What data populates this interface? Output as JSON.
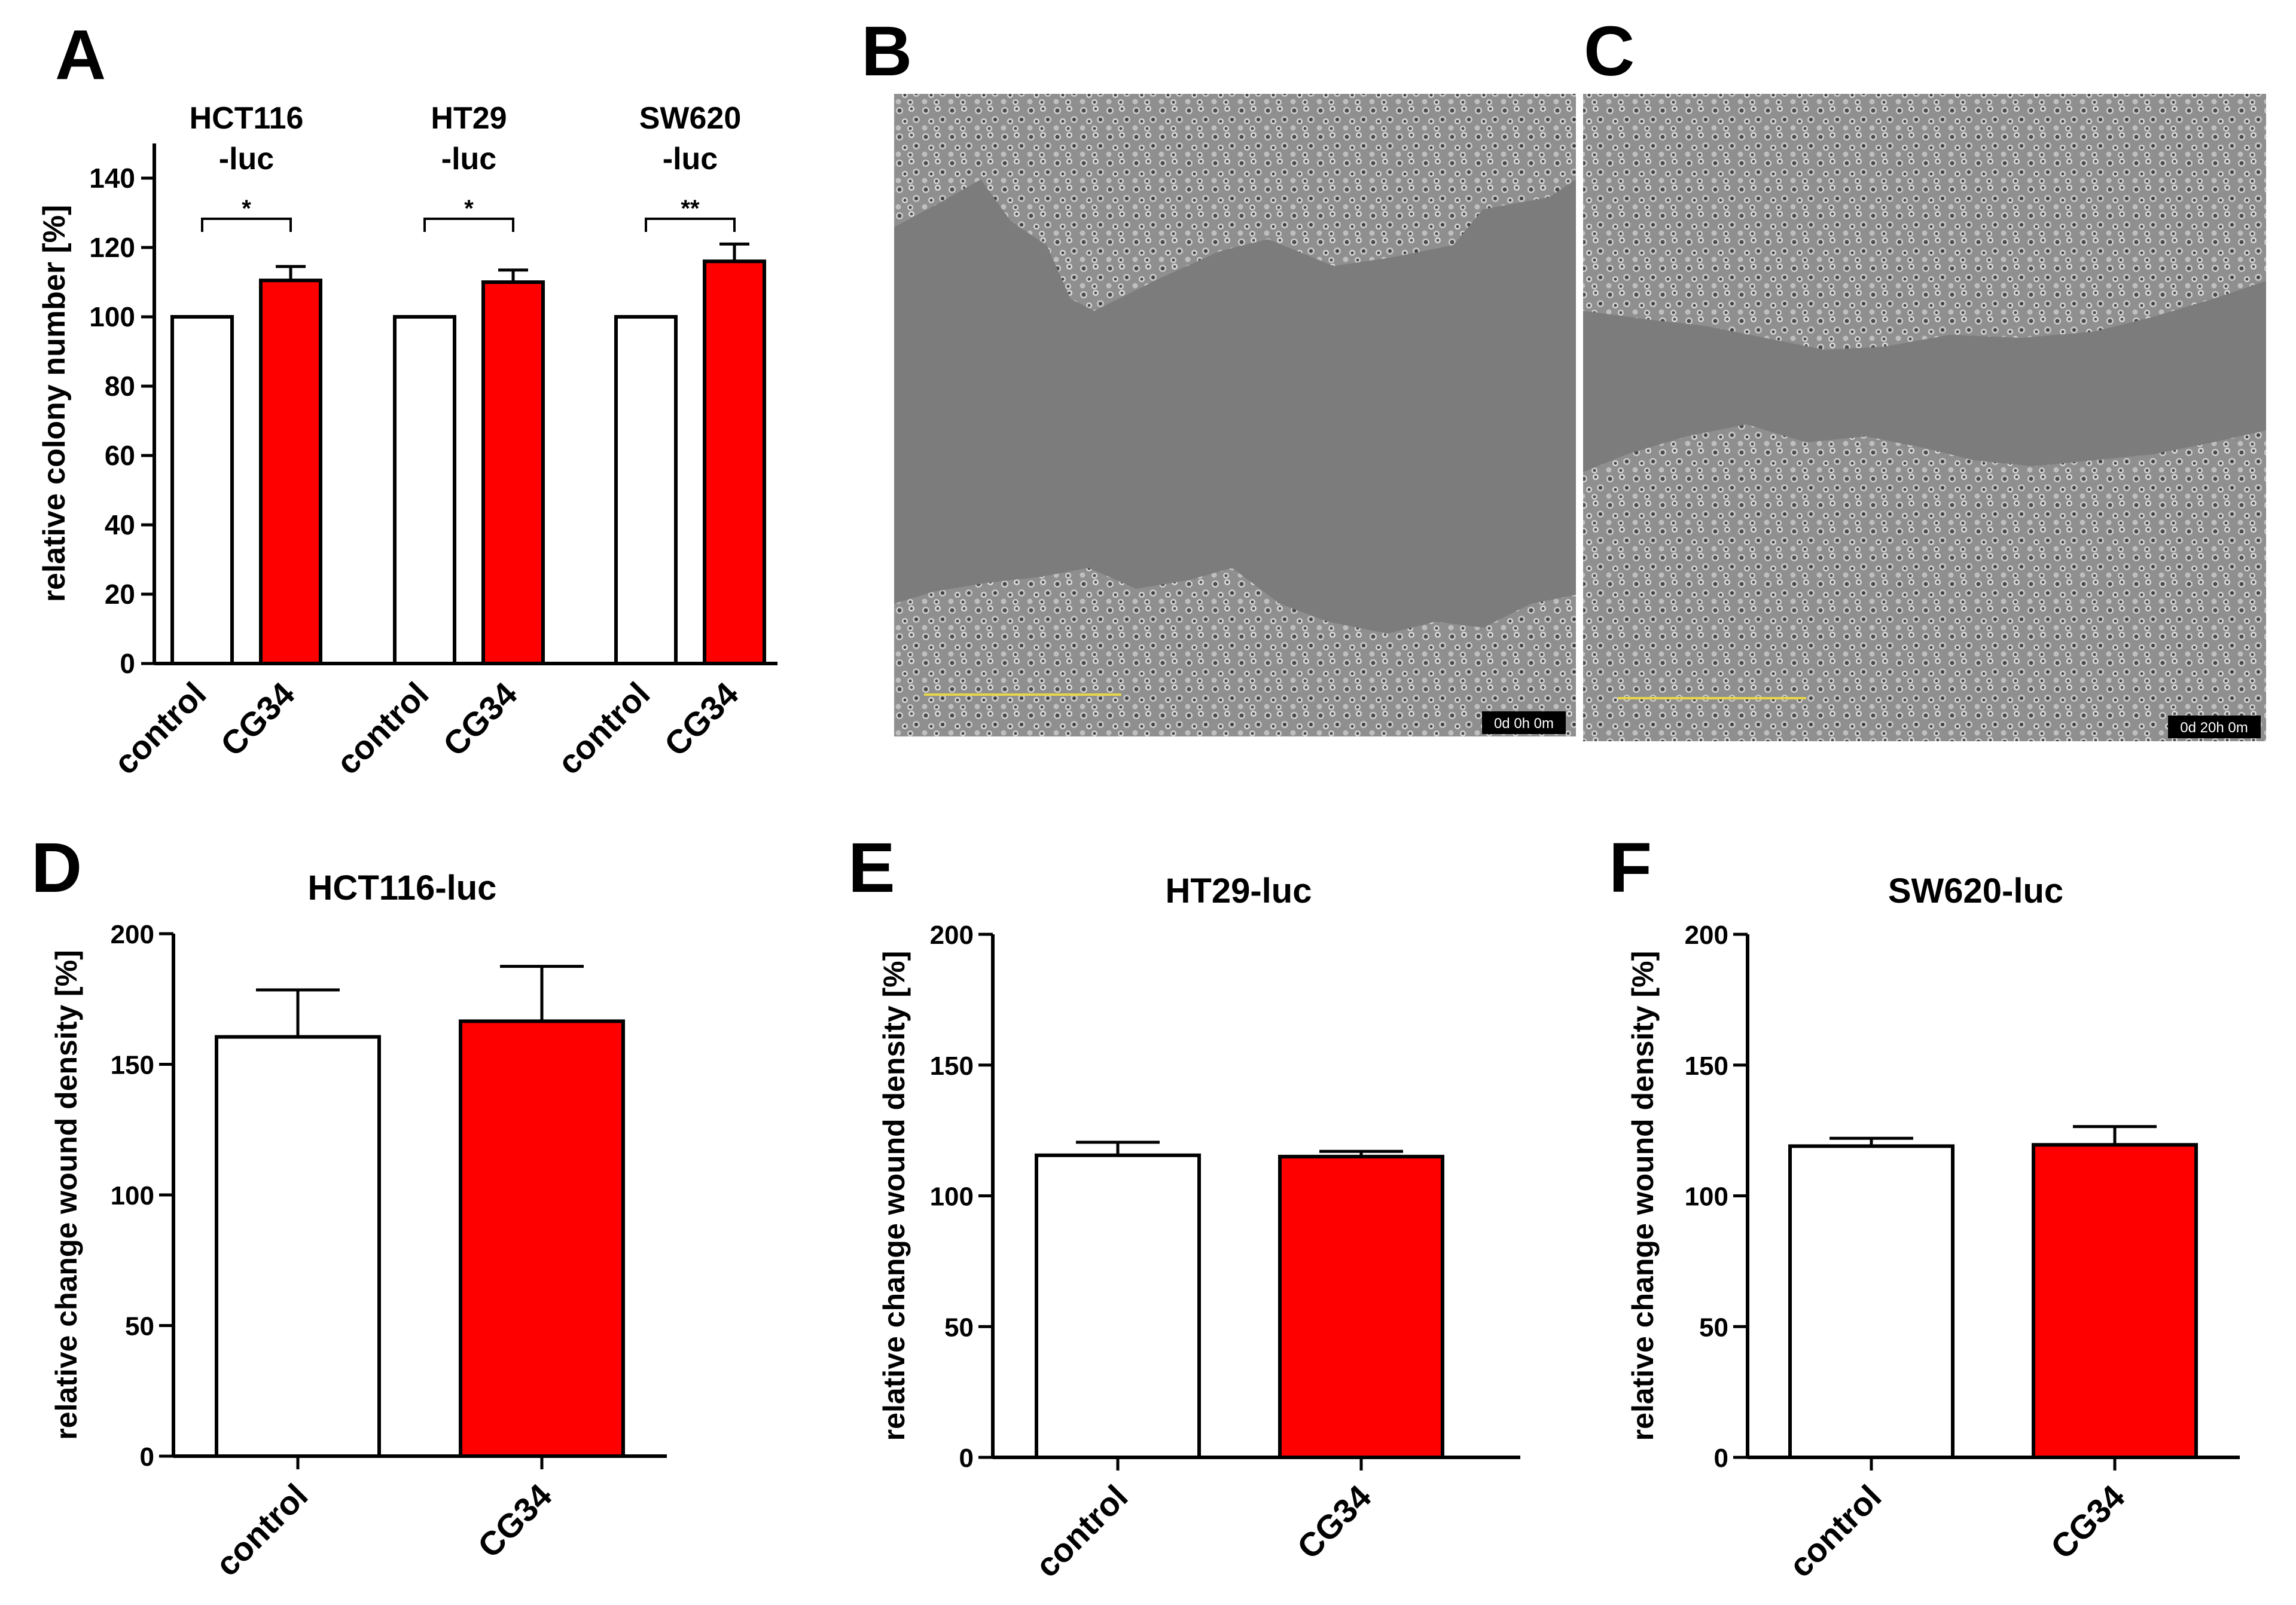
{
  "panels": {
    "A": {
      "label": "A",
      "chart_data": {
        "type": "bar",
        "ylabel": "relative colony number [%]",
        "ylim": [
          0,
          150
        ],
        "yticks": [
          0,
          20,
          40,
          60,
          80,
          100,
          120,
          140
        ],
        "groups": [
          {
            "title_lines": [
              "HCT116",
              "-luc"
            ],
            "significance": "*",
            "bars": [
              {
                "category": "control",
                "value": 100,
                "error": 0
              },
              {
                "category": "CG34",
                "value": 110.5,
                "error": 4
              }
            ]
          },
          {
            "title_lines": [
              "HT29",
              "-luc"
            ],
            "significance": "*",
            "bars": [
              {
                "category": "control",
                "value": 100,
                "error": 0
              },
              {
                "category": "CG34",
                "value": 110,
                "error": 3.5
              }
            ]
          },
          {
            "title_lines": [
              "SW620",
              "-luc"
            ],
            "significance": "**",
            "bars": [
              {
                "category": "control",
                "value": 100,
                "error": 0
              },
              {
                "category": "CG34",
                "value": 116,
                "error": 5
              }
            ]
          }
        ]
      }
    },
    "B": {
      "label": "B",
      "timestamp": "0d 0h 0m"
    },
    "C": {
      "label": "C",
      "timestamp": "0d 20h 0m"
    },
    "D": {
      "label": "D",
      "chart_data": {
        "type": "bar",
        "title": "HCT116-luc",
        "ylabel": "relative change wound density [%]",
        "ylim": [
          0,
          200
        ],
        "yticks": [
          0,
          50,
          100,
          150,
          200
        ],
        "categories": [
          "control",
          "CG34"
        ],
        "values": [
          160.5,
          166.5
        ],
        "errors": [
          18,
          21
        ]
      }
    },
    "E": {
      "label": "E",
      "chart_data": {
        "type": "bar",
        "title": "HT29-luc",
        "ylabel": "relative change wound density [%]",
        "ylim": [
          0,
          200
        ],
        "yticks": [
          0,
          50,
          100,
          150,
          200
        ],
        "categories": [
          "control",
          "CG34"
        ],
        "values": [
          115.5,
          115
        ],
        "errors": [
          5,
          2
        ]
      }
    },
    "F": {
      "label": "F",
      "chart_data": {
        "type": "bar",
        "title": "SW620-luc",
        "ylabel": "relative change wound density [%]",
        "ylim": [
          0,
          200
        ],
        "yticks": [
          0,
          50,
          100,
          150,
          200
        ],
        "categories": [
          "control",
          "CG34"
        ],
        "values": [
          119,
          119.5
        ],
        "errors": [
          3,
          7
        ]
      }
    }
  },
  "colors": {
    "control": "#ffffff",
    "treatment": "#ff0000",
    "axis": "#000000",
    "micro_bg": "#7c7c7c"
  }
}
